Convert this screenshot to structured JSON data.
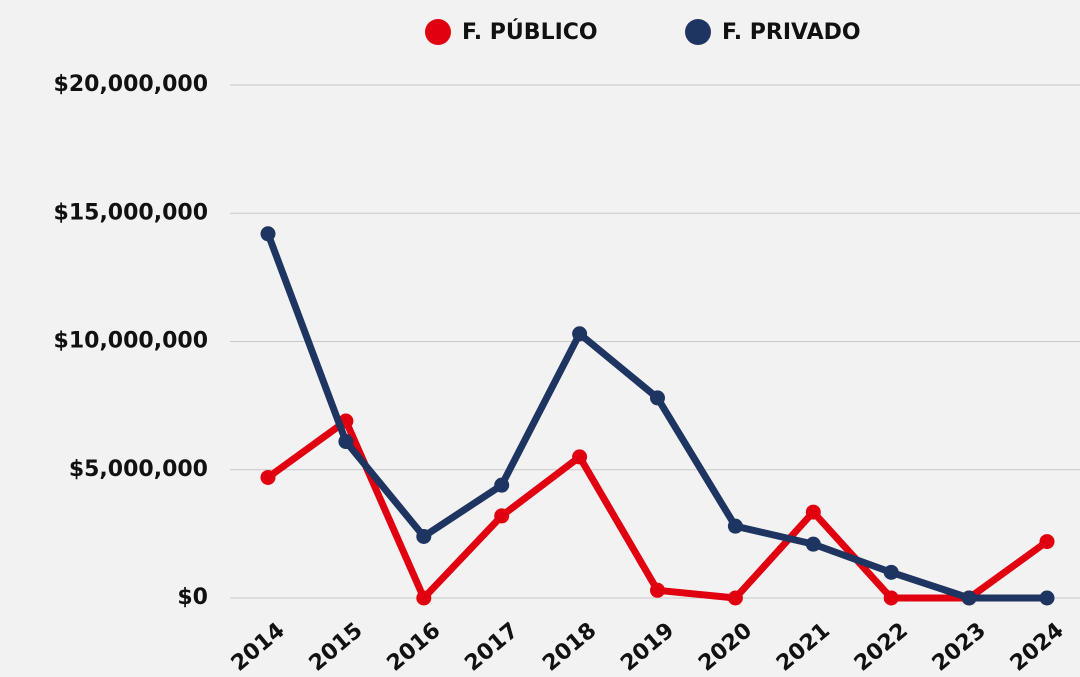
{
  "chart_data": {
    "type": "line",
    "categories": [
      "2014",
      "2015",
      "2016",
      "2017",
      "2018",
      "2019",
      "2020",
      "2021",
      "2022",
      "2023",
      "2024"
    ],
    "series": [
      {
        "name": "F. PÚBLICO",
        "color": "#e0000f",
        "values": [
          4700000,
          6900000,
          0,
          3200000,
          5500000,
          300000,
          0,
          3350000,
          0,
          0,
          2200000
        ]
      },
      {
        "name": "F. PRIVADO",
        "color": "#1e3461",
        "values": [
          14200000,
          6100000,
          2400000,
          4400000,
          10300000,
          7800000,
          2800000,
          2100000,
          1000000,
          0,
          0
        ]
      }
    ],
    "ylim": [
      0,
      20000000
    ],
    "yticks": [
      {
        "value": 0,
        "label": "$0"
      },
      {
        "value": 5000000,
        "label": "$5,000,000"
      },
      {
        "value": 10000000,
        "label": "$10,000,000"
      },
      {
        "value": 15000000,
        "label": "$15,000,000"
      },
      {
        "value": 20000000,
        "label": "$20,000,000"
      }
    ],
    "grid": true
  }
}
